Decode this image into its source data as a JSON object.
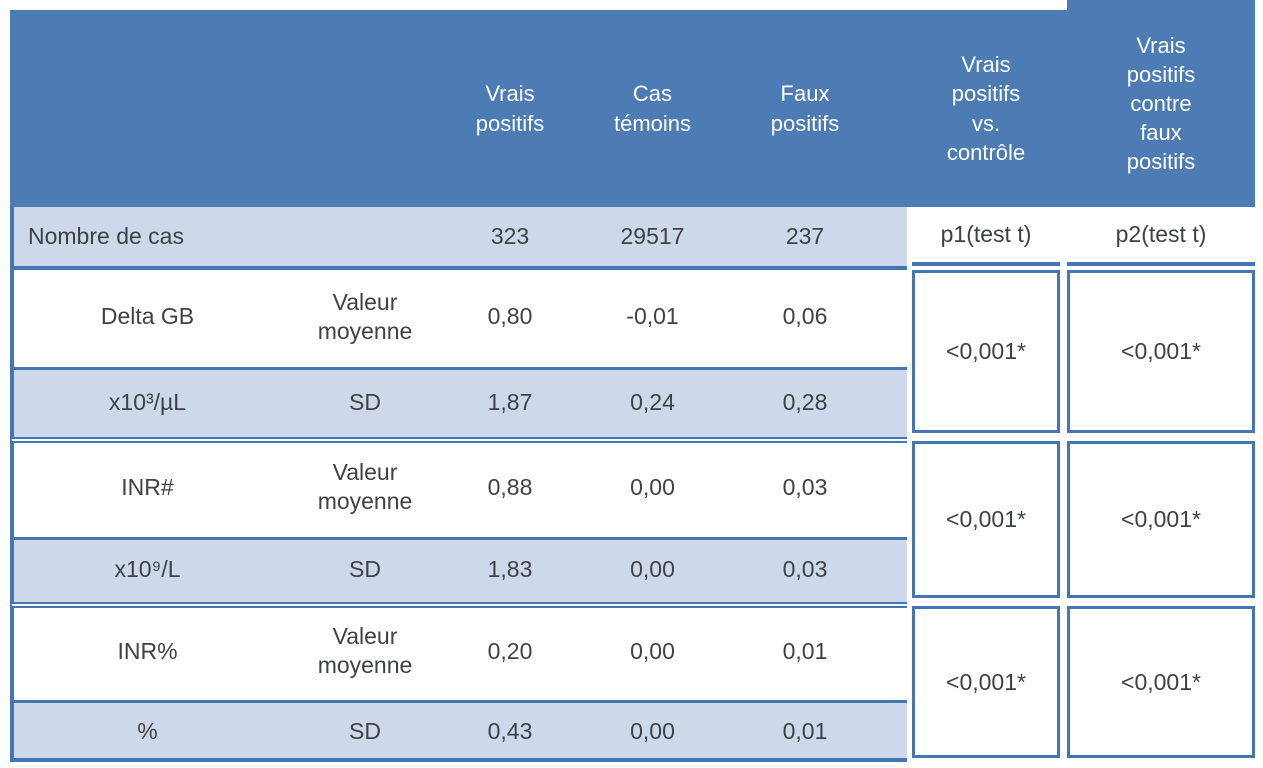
{
  "table": {
    "header": {
      "vrais_positifs": "Vrais\npositifs",
      "cas_temoins": "Cas\ntémoins",
      "faux_positifs": "Faux\npositifs",
      "vp_vs_controle": "Vrais\npositifs\nvs.\ncontrôle",
      "vp_contre_fp": "Vrais\npositifs\ncontre\nfaux\npositifs"
    },
    "count_row": {
      "label": "Nombre de cas",
      "vrais_positifs": "323",
      "cas_temoins": "29517",
      "faux_positifs": "237",
      "p1": "p1(test t)",
      "p2": "p2(test t)"
    },
    "groups": [
      {
        "parameter": "Delta GB",
        "unit": "x10³/µL",
        "mean_label": "Valeur\nmoyenne",
        "sd_label": "SD",
        "mean": {
          "vrais_positifs": "0,80",
          "cas_temoins": "-0,01",
          "faux_positifs": "0,06"
        },
        "sd": {
          "vrais_positifs": "1,87",
          "cas_temoins": "0,24",
          "faux_positifs": "0,28"
        },
        "p1": "<0,001*",
        "p2": "<0,001*"
      },
      {
        "parameter": "INR#",
        "unit": "x10⁹/L",
        "mean_label": "Valeur\nmoyenne",
        "sd_label": "SD",
        "mean": {
          "vrais_positifs": "0,88",
          "cas_temoins": "0,00",
          "faux_positifs": "0,03"
        },
        "sd": {
          "vrais_positifs": "1,83",
          "cas_temoins": "0,00",
          "faux_positifs": "0,03"
        },
        "p1": "<0,001*",
        "p2": "<0,001*"
      },
      {
        "parameter": "INR%",
        "unit": "%",
        "mean_label": "Valeur\nmoyenne",
        "sd_label": "SD",
        "mean": {
          "vrais_positifs": "0,20",
          "cas_temoins": "0,00",
          "faux_positifs": "0,01"
        },
        "sd": {
          "vrais_positifs": "0,43",
          "cas_temoins": "0,00",
          "faux_positifs": "0,01"
        },
        "p1": "<0,001*",
        "p2": "<0,001*"
      }
    ],
    "colors": {
      "header_fill": "#4d7cb5",
      "border": "#4575b2",
      "row_tint": "#cdd9ea",
      "header_text": "#ffffff",
      "body_text": "#3f4245"
    }
  }
}
